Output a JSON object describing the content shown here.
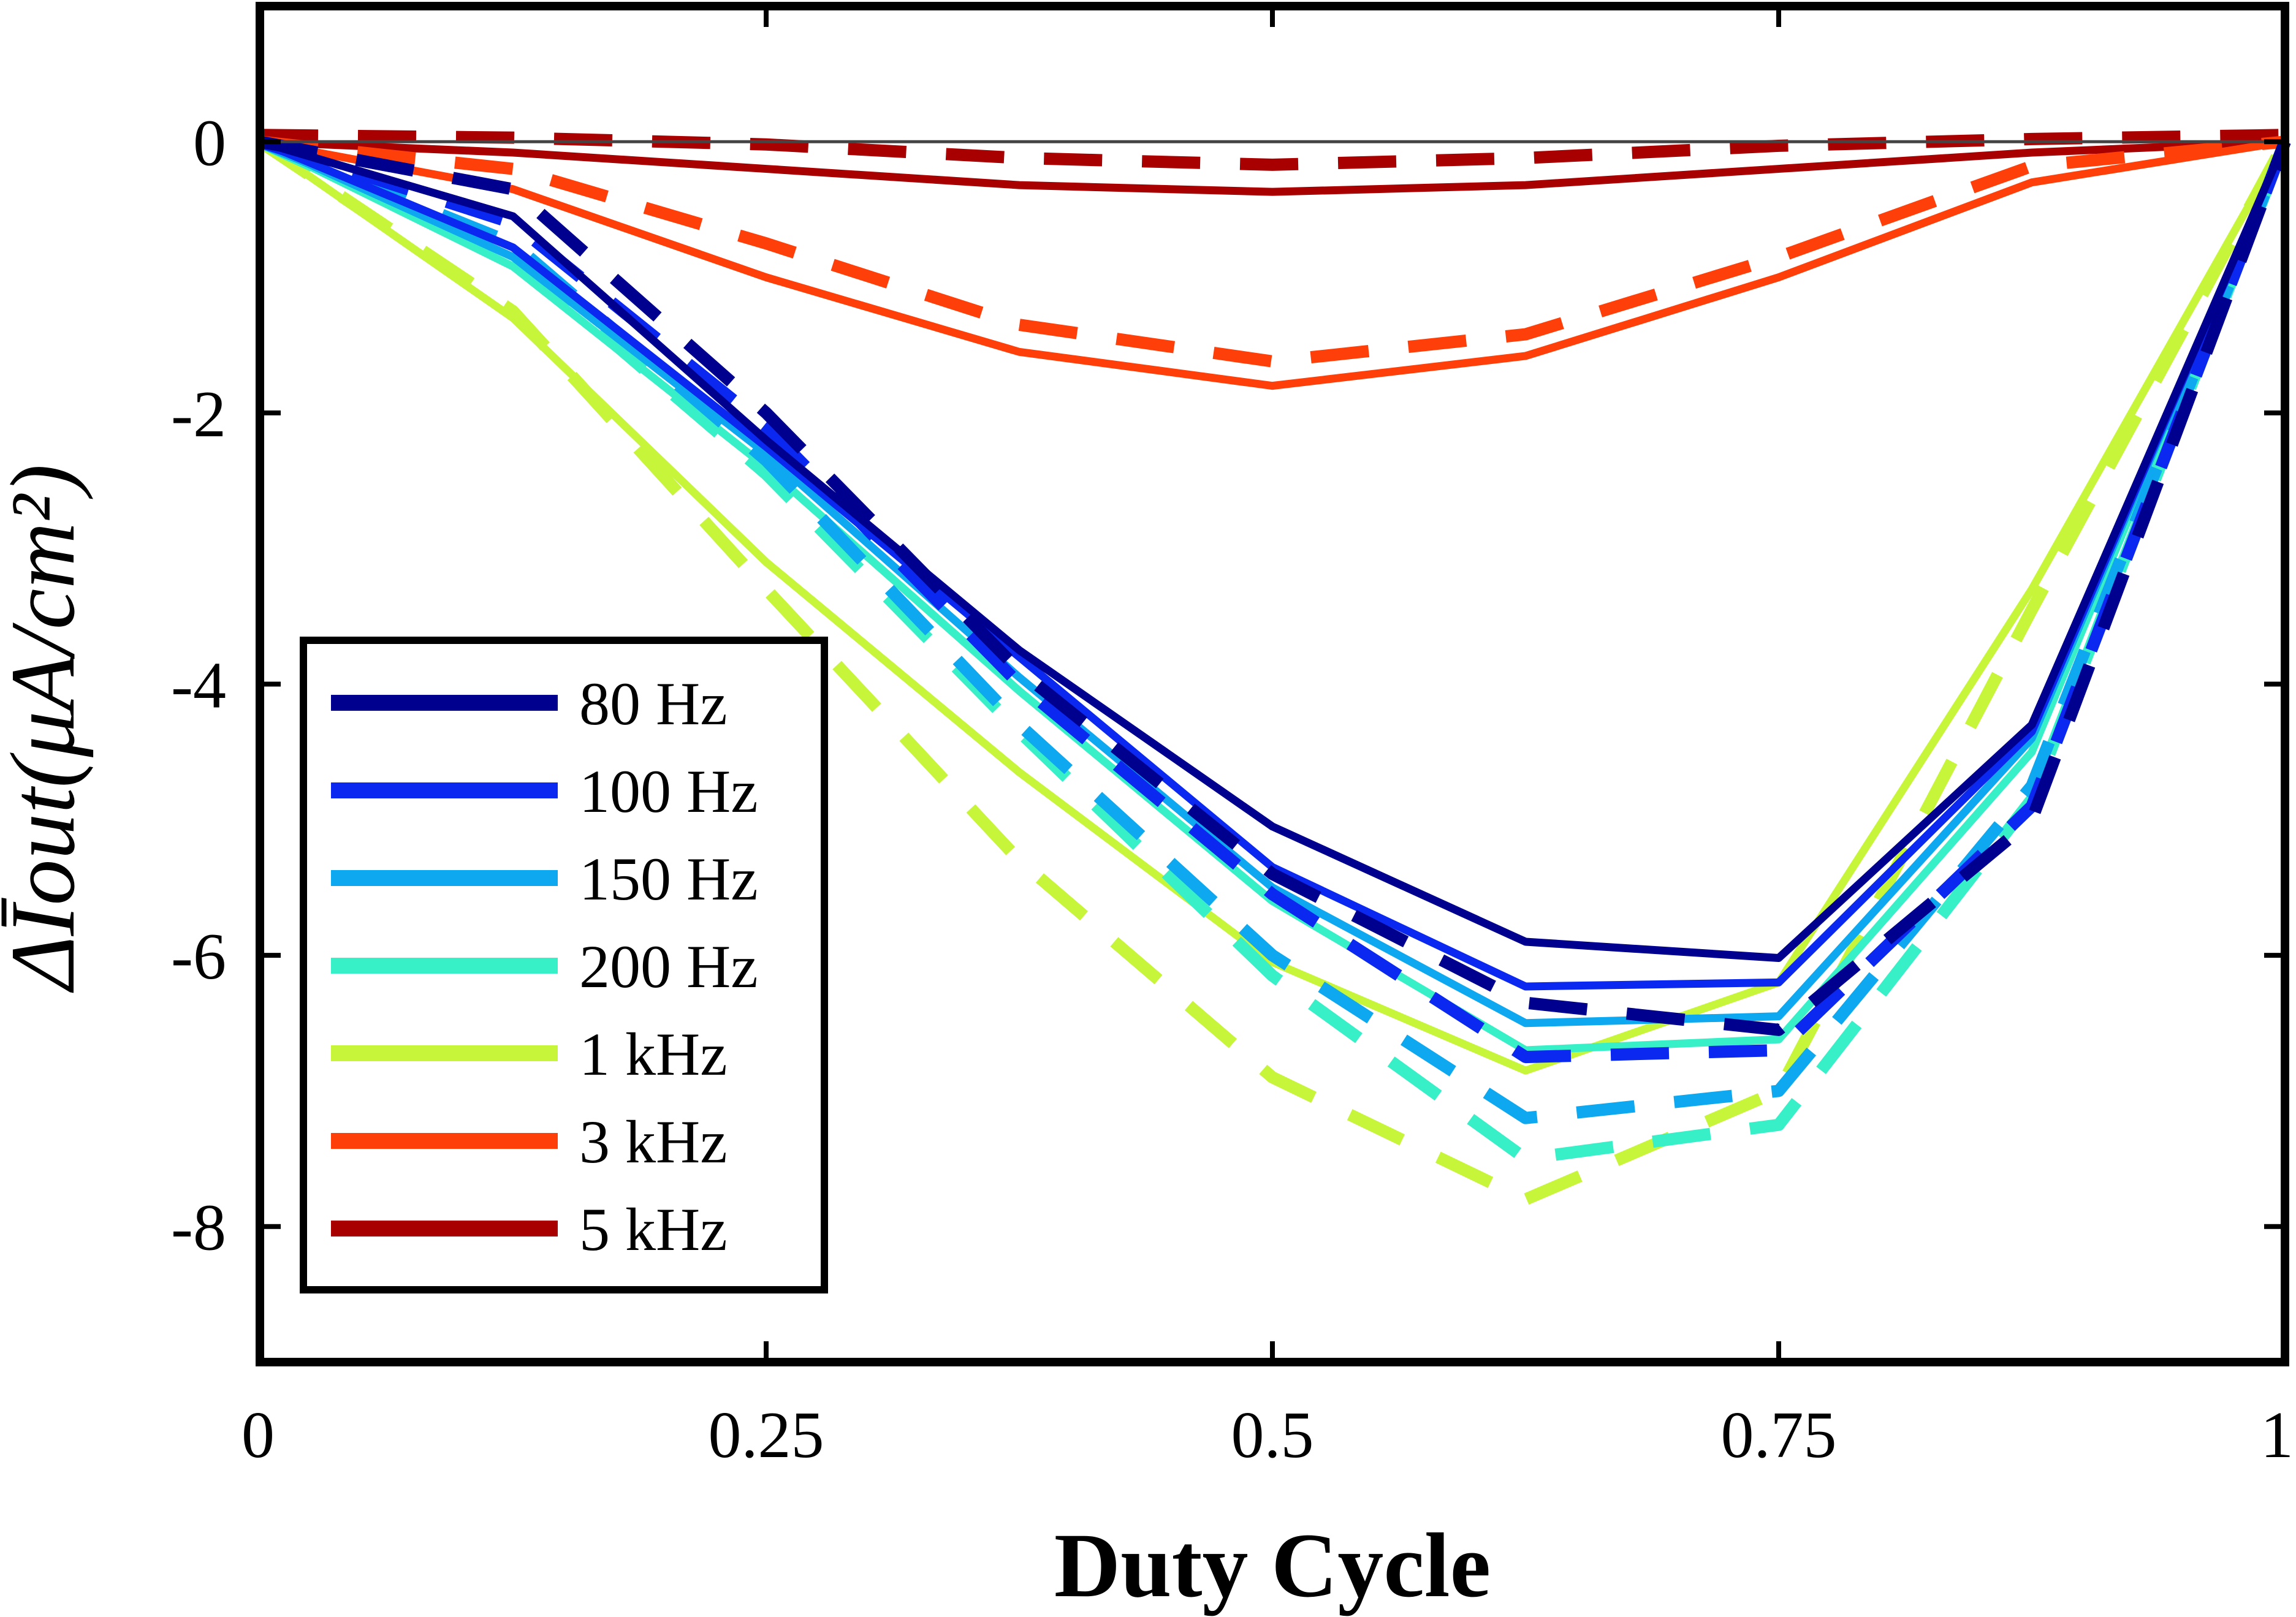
{
  "chart_data": {
    "type": "line",
    "title": "",
    "xlabel": "Duty Cycle",
    "ylabel": "ΔĪout(μA/cm²)",
    "xlim": [
      0,
      1
    ],
    "ylim": [
      -9,
      1
    ],
    "xticks": [
      0,
      0.25,
      0.5,
      0.75,
      1
    ],
    "xtick_labels": [
      "0",
      "0.25",
      "0.5",
      "0.75",
      "1"
    ],
    "yticks": [
      0,
      -2,
      -4,
      -6,
      -8
    ],
    "ytick_labels": [
      "0",
      "-2",
      "-4",
      "-6",
      "-8"
    ],
    "grid": false,
    "legend_position": "bottom-left",
    "reference_line": 0,
    "x": [
      0,
      0.125,
      0.25,
      0.375,
      0.5,
      0.625,
      0.75,
      0.875,
      1
    ],
    "series": [
      {
        "name": "80 Hz",
        "color": "#00008f",
        "values": [
          0,
          -0.55,
          -2.2,
          -3.75,
          -5.05,
          -5.9,
          -6.02,
          -4.3,
          0
        ],
        "dashed": [
          0,
          -0.35,
          -2.0,
          -3.9,
          -5.4,
          -6.35,
          -6.55,
          -5.0,
          0
        ]
      },
      {
        "name": "100 Hz",
        "color": "#0a28f0",
        "values": [
          0,
          -0.78,
          -2.25,
          -3.8,
          -5.35,
          -6.23,
          -6.2,
          -4.35,
          0
        ],
        "dashed": [
          0,
          -0.6,
          -2.1,
          -4.0,
          -5.55,
          -6.75,
          -6.7,
          -4.9,
          0
        ]
      },
      {
        "name": "150 Hz",
        "color": "#0ea8f0",
        "values": [
          0,
          -0.85,
          -2.3,
          -3.95,
          -5.5,
          -6.5,
          -6.45,
          -4.4,
          0
        ],
        "dashed": [
          0,
          -0.75,
          -2.35,
          -4.3,
          -6.0,
          -7.2,
          -7.0,
          -4.75,
          0
        ]
      },
      {
        "name": "200 Hz",
        "color": "#38f0c8",
        "values": [
          0,
          -0.92,
          -2.4,
          -4.05,
          -5.6,
          -6.7,
          -6.62,
          -4.5,
          0
        ],
        "dashed": [
          0,
          -0.85,
          -2.45,
          -4.35,
          -6.15,
          -7.5,
          -7.25,
          -4.85,
          0
        ]
      },
      {
        "name": "1 kHz",
        "color": "#c6f53a",
        "values": [
          0,
          -1.3,
          -3.1,
          -4.65,
          -6.05,
          -6.85,
          -6.2,
          -3.3,
          0
        ],
        "dashed": [
          0,
          -1.25,
          -3.3,
          -5.3,
          -6.9,
          -7.8,
          -7.0,
          -3.45,
          0
        ]
      },
      {
        "name": "3 kHz",
        "color": "#ff3f0a",
        "values": [
          0,
          -0.35,
          -1.0,
          -1.55,
          -1.8,
          -1.58,
          -1.0,
          -0.3,
          0
        ],
        "dashed": [
          0,
          -0.2,
          -0.75,
          -1.35,
          -1.62,
          -1.42,
          -0.85,
          -0.18,
          0
        ]
      },
      {
        "name": "5 kHz",
        "color": "#a80000",
        "values": [
          0,
          -0.08,
          -0.2,
          -0.32,
          -0.37,
          -0.32,
          -0.2,
          -0.08,
          0
        ],
        "dashed": [
          0.05,
          0.03,
          -0.02,
          -0.12,
          -0.17,
          -0.12,
          -0.03,
          0.02,
          0.05
        ]
      }
    ]
  }
}
